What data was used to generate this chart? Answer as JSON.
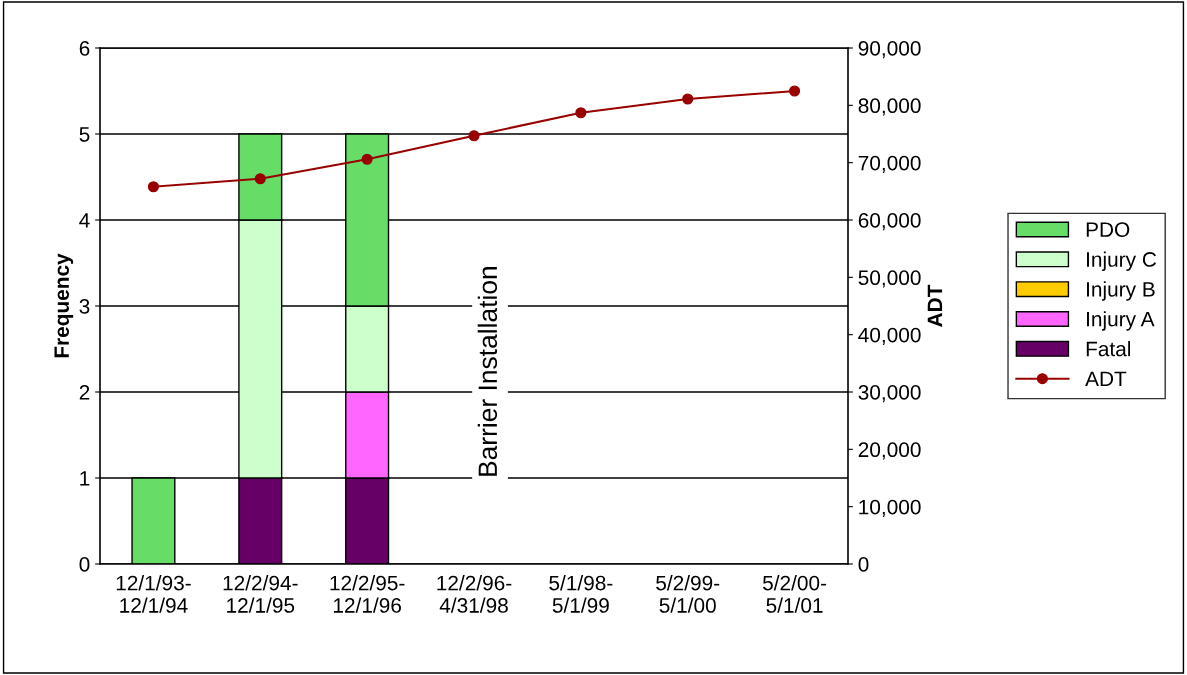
{
  "chart_data": {
    "type": "bar",
    "stacked": true,
    "ylabel": "Frequency",
    "y2label": "ADT",
    "categories": [
      "12/1/93-\n12/1/94",
      "12/2/94-\n12/1/95",
      "12/2/95-\n12/1/96",
      "12/2/96-\n4/31/98",
      "5/1/98-\n5/1/99",
      "5/2/99-\n5/1/00",
      "5/2/00-\n5/1/01"
    ],
    "series": [
      {
        "name": "Fatal",
        "color": "#660066",
        "values": [
          0,
          1,
          1,
          0,
          0,
          0,
          0
        ]
      },
      {
        "name": "Injury A",
        "color": "#ff66ff",
        "values": [
          0,
          0,
          1,
          0,
          0,
          0,
          0
        ]
      },
      {
        "name": "Injury B",
        "color": "#ffcc00",
        "values": [
          0,
          0,
          0,
          0,
          0,
          0,
          0
        ]
      },
      {
        "name": "Injury C",
        "color": "#ccffcc",
        "values": [
          0,
          3,
          1,
          0,
          0,
          0,
          0
        ]
      },
      {
        "name": "PDO",
        "color": "#66dd66",
        "values": [
          1,
          1,
          2,
          0,
          0,
          0,
          0
        ]
      },
      {
        "name": "ADT",
        "type": "line",
        "axis": "y2",
        "color": "#990000",
        "marker": "circle",
        "values": [
          65800,
          67200,
          70600,
          74700,
          78700,
          81100,
          82500
        ]
      }
    ],
    "ylim": [
      0,
      6
    ],
    "yticks": [
      0,
      1,
      2,
      3,
      4,
      5,
      6
    ],
    "y2lim": [
      0,
      90000
    ],
    "y2ticks": [
      {
        "value": 0,
        "label": "0"
      },
      {
        "value": 10000,
        "label": "10,000"
      },
      {
        "value": 20000,
        "label": "20,000"
      },
      {
        "value": 30000,
        "label": "30,000"
      },
      {
        "value": 40000,
        "label": "40,000"
      },
      {
        "value": 50000,
        "label": "50,000"
      },
      {
        "value": 60000,
        "label": "60,000"
      },
      {
        "value": 70000,
        "label": "70,000"
      },
      {
        "value": 80000,
        "label": "80,000"
      },
      {
        "value": 90000,
        "label": "90,000"
      }
    ],
    "grid": "y",
    "legend": "right",
    "annotations": [
      "Barrier Installation"
    ]
  }
}
